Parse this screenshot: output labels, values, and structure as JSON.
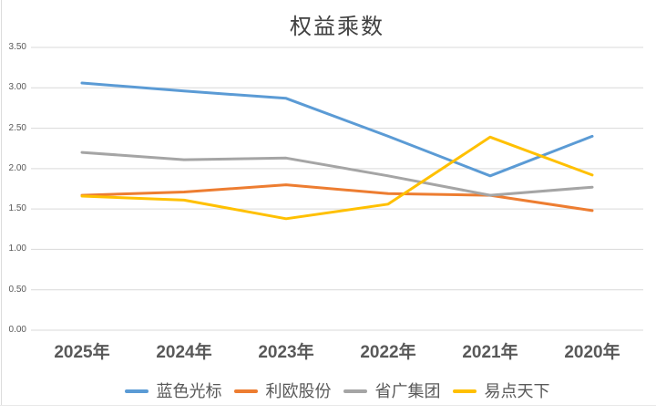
{
  "title": "权益乘数",
  "styles": {
    "background": "#FFFFFF",
    "grid_color": "#D9D9D9",
    "title_color": "#404040",
    "axis_text_color": "#595959",
    "legend_text_color": "#595959"
  },
  "chart_data": {
    "type": "line",
    "title": "权益乘数",
    "categories": [
      "2025年",
      "2024年",
      "2023年",
      "2022年",
      "2021年",
      "2020年"
    ],
    "series": [
      {
        "name": "蓝色光标",
        "color": "#5B9BD5",
        "values": [
          3.06,
          2.96,
          2.87,
          2.4,
          1.91,
          2.4
        ]
      },
      {
        "name": "利欧股份",
        "color": "#ED7D31",
        "values": [
          1.67,
          1.71,
          1.8,
          1.69,
          1.67,
          1.48
        ]
      },
      {
        "name": "省广集团",
        "color": "#A5A5A5",
        "values": [
          2.2,
          2.11,
          2.13,
          1.91,
          1.67,
          1.77
        ]
      },
      {
        "name": "易点天下",
        "color": "#FFC000",
        "values": [
          1.66,
          1.61,
          1.38,
          1.56,
          2.39,
          1.92
        ]
      }
    ],
    "y_axis": {
      "min": 0.0,
      "max": 3.5,
      "step": 0.5,
      "tick_labels": [
        "0.00",
        "0.50",
        "1.00",
        "1.50",
        "2.00",
        "2.50",
        "3.00",
        "3.50"
      ]
    },
    "x_axis_label": "",
    "ylabel": "",
    "grid": true,
    "legend_position": "bottom"
  }
}
